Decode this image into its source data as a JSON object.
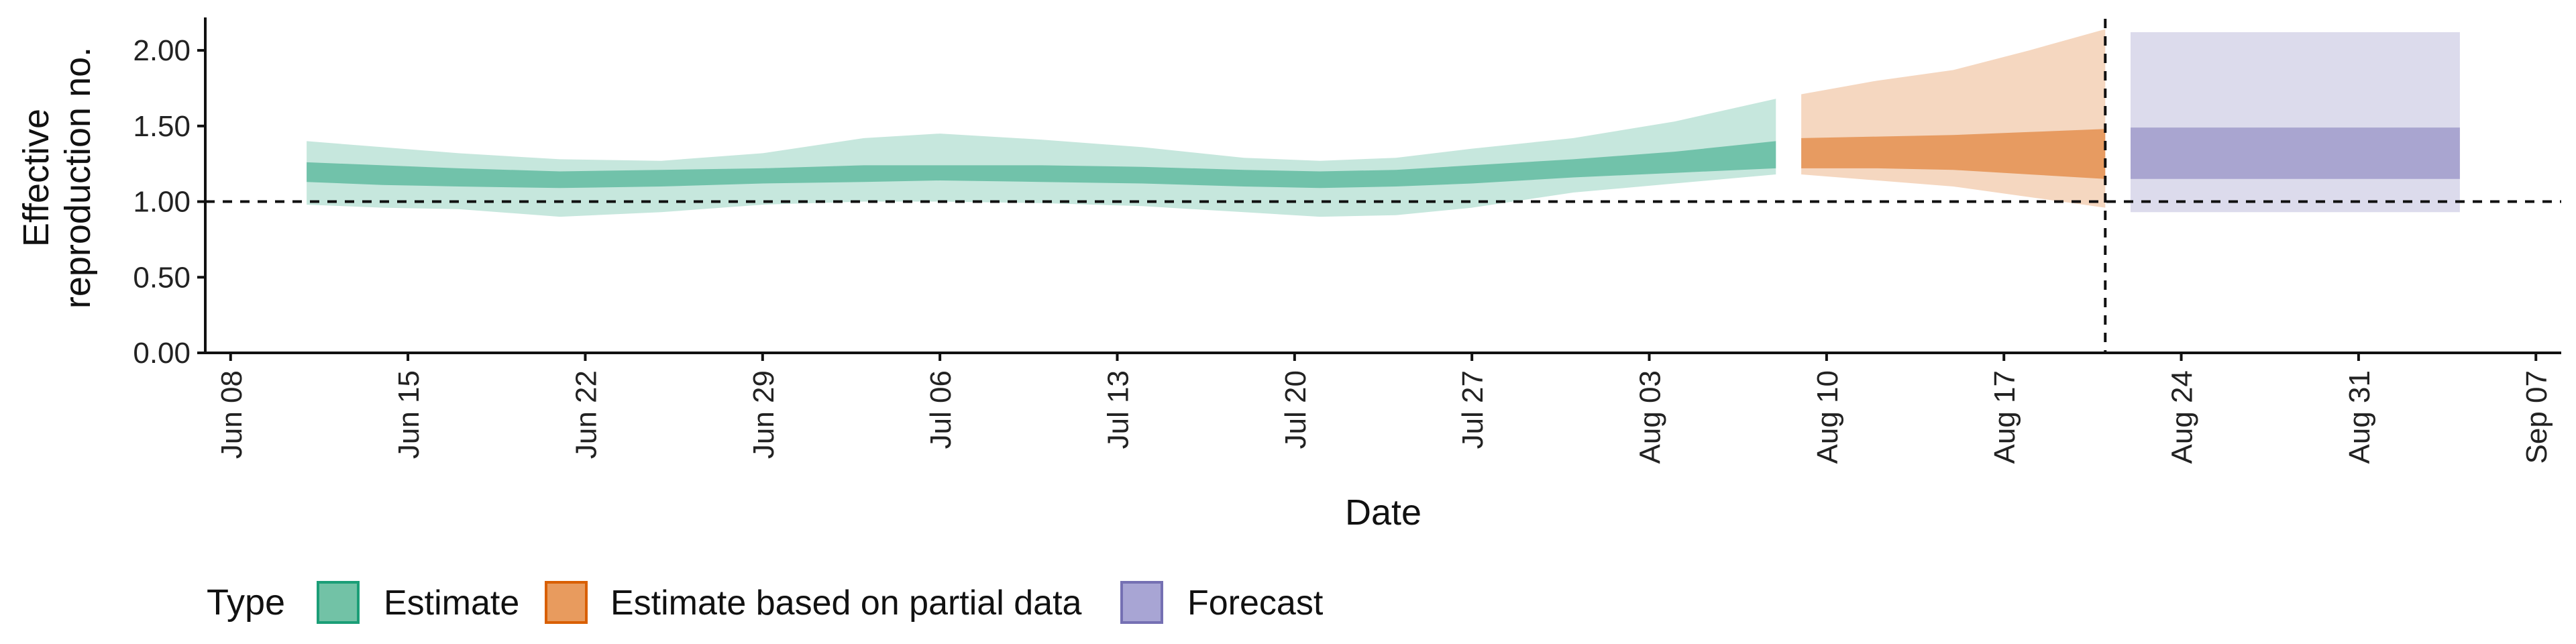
{
  "chart_data": {
    "type": "area",
    "xlabel": "Date",
    "ylabel_lines": [
      "Effective",
      "reproduction no."
    ],
    "x_ticks": [
      "Jun 08",
      "Jun 15",
      "Jun 22",
      "Jun 29",
      "Jul 06",
      "Jul 13",
      "Jul 20",
      "Jul 27",
      "Aug 03",
      "Aug 10",
      "Aug 17",
      "Aug 24",
      "Aug 31",
      "Sep 07"
    ],
    "x_range": [
      "2020-06-07",
      "2020-09-08"
    ],
    "y_ticks": [
      "0.00",
      "0.50",
      "1.00",
      "1.50",
      "2.00"
    ],
    "ylim": [
      0,
      2.2
    ],
    "reference_line_y": 1.0,
    "reference_line_x": "2020-08-21",
    "legend": {
      "title": "Type",
      "position": "bottom",
      "items": [
        {
          "label": "Estimate",
          "fill": "#72c2a6",
          "stroke": "#1b9e77"
        },
        {
          "label": "Estimate based on partial data",
          "fill": "#e89b5e",
          "stroke": "#d95f02"
        },
        {
          "label": "Forecast",
          "fill": "#a8a5d4",
          "stroke": "#7570b3"
        }
      ]
    },
    "series": [
      {
        "name": "Estimate",
        "fill": "#1b9e77",
        "points": [
          {
            "date": "2020-06-11",
            "lo90": 0.98,
            "lo50": 1.13,
            "hi50": 1.26,
            "hi90": 1.4
          },
          {
            "date": "2020-06-14",
            "lo90": 0.96,
            "lo50": 1.11,
            "hi50": 1.24,
            "hi90": 1.36
          },
          {
            "date": "2020-06-17",
            "lo90": 0.95,
            "lo50": 1.1,
            "hi50": 1.22,
            "hi90": 1.32
          },
          {
            "date": "2020-06-21",
            "lo90": 0.9,
            "lo50": 1.09,
            "hi50": 1.2,
            "hi90": 1.28
          },
          {
            "date": "2020-06-25",
            "lo90": 0.93,
            "lo50": 1.1,
            "hi50": 1.21,
            "hi90": 1.27
          },
          {
            "date": "2020-06-29",
            "lo90": 0.98,
            "lo50": 1.12,
            "hi50": 1.22,
            "hi90": 1.32
          },
          {
            "date": "2020-07-03",
            "lo90": 1.0,
            "lo50": 1.13,
            "hi50": 1.24,
            "hi90": 1.42
          },
          {
            "date": "2020-07-06",
            "lo90": 1.0,
            "lo50": 1.14,
            "hi50": 1.24,
            "hi90": 1.45
          },
          {
            "date": "2020-07-10",
            "lo90": 0.99,
            "lo50": 1.13,
            "hi50": 1.24,
            "hi90": 1.41
          },
          {
            "date": "2020-07-14",
            "lo90": 0.97,
            "lo50": 1.12,
            "hi50": 1.23,
            "hi90": 1.36
          },
          {
            "date": "2020-07-18",
            "lo90": 0.93,
            "lo50": 1.1,
            "hi50": 1.21,
            "hi90": 1.29
          },
          {
            "date": "2020-07-21",
            "lo90": 0.9,
            "lo50": 1.09,
            "hi50": 1.2,
            "hi90": 1.27
          },
          {
            "date": "2020-07-24",
            "lo90": 0.91,
            "lo50": 1.1,
            "hi50": 1.21,
            "hi90": 1.29
          },
          {
            "date": "2020-07-27",
            "lo90": 0.96,
            "lo50": 1.12,
            "hi50": 1.24,
            "hi90": 1.35
          },
          {
            "date": "2020-07-31",
            "lo90": 1.06,
            "lo50": 1.16,
            "hi50": 1.28,
            "hi90": 1.42
          },
          {
            "date": "2020-08-04",
            "lo90": 1.12,
            "lo50": 1.19,
            "hi50": 1.33,
            "hi90": 1.53
          },
          {
            "date": "2020-08-08",
            "lo90": 1.18,
            "lo50": 1.22,
            "hi50": 1.4,
            "hi90": 1.68
          }
        ]
      },
      {
        "name": "Estimate based on partial data",
        "fill": "#d95f02",
        "points": [
          {
            "date": "2020-08-09",
            "lo90": 1.18,
            "lo50": 1.22,
            "hi50": 1.42,
            "hi90": 1.71
          },
          {
            "date": "2020-08-12",
            "lo90": 1.14,
            "lo50": 1.22,
            "hi50": 1.43,
            "hi90": 1.8
          },
          {
            "date": "2020-08-15",
            "lo90": 1.1,
            "lo50": 1.21,
            "hi50": 1.44,
            "hi90": 1.87
          },
          {
            "date": "2020-08-18",
            "lo90": 1.03,
            "lo50": 1.18,
            "hi50": 1.46,
            "hi90": 2.0
          },
          {
            "date": "2020-08-21",
            "lo90": 0.96,
            "lo50": 1.15,
            "hi50": 1.48,
            "hi90": 2.14
          }
        ]
      },
      {
        "name": "Forecast",
        "fill": "#7570b3",
        "points": [
          {
            "date": "2020-08-22",
            "lo90": 0.93,
            "lo50": 1.15,
            "hi50": 1.49,
            "hi90": 2.12
          },
          {
            "date": "2020-09-04",
            "lo90": 0.93,
            "lo50": 1.15,
            "hi50": 1.49,
            "hi90": 2.12
          }
        ]
      }
    ]
  }
}
